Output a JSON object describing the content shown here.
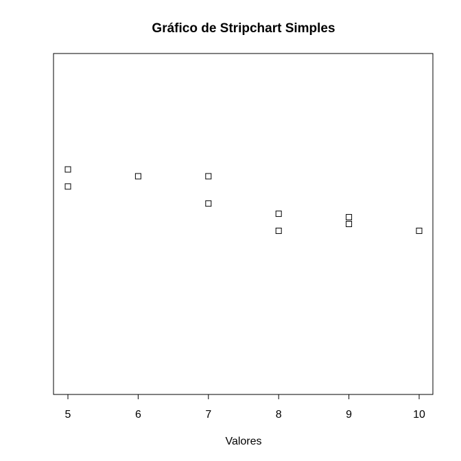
{
  "chart_data": {
    "type": "scatter",
    "title": "Gráfico de Stripchart Simples",
    "xlabel": "Valores",
    "ylabel": "",
    "xlim": [
      5,
      10
    ],
    "ylim": [
      0.5,
      1.5
    ],
    "x_ticks": [
      5,
      6,
      7,
      8,
      9,
      10
    ],
    "x_tick_labels": [
      "5",
      "6",
      "7",
      "8",
      "9",
      "10"
    ],
    "grid": false,
    "marker": "open-square",
    "series": [
      {
        "x": [
          5,
          5,
          6,
          7,
          7,
          8,
          8,
          9,
          9,
          10
        ],
        "y": [
          1.16,
          1.11,
          1.14,
          1.14,
          1.06,
          1.03,
          0.98,
          1.02,
          1.0,
          0.98
        ]
      }
    ]
  }
}
